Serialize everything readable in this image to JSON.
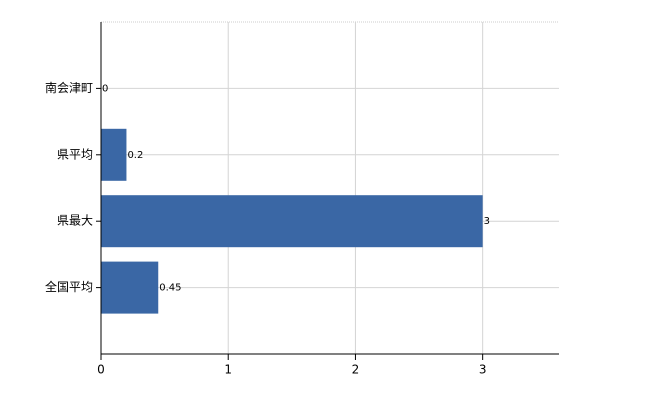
{
  "chart_data": {
    "type": "bar",
    "orientation": "horizontal",
    "categories": [
      "南会津町",
      "県平均",
      "県最大",
      "全国平均"
    ],
    "values": [
      0,
      0.2,
      3,
      0.45
    ],
    "color": "#3a67a5",
    "xlim": [
      0,
      3.6
    ],
    "xticks": [
      0,
      1,
      2,
      3
    ],
    "grid": true
  }
}
